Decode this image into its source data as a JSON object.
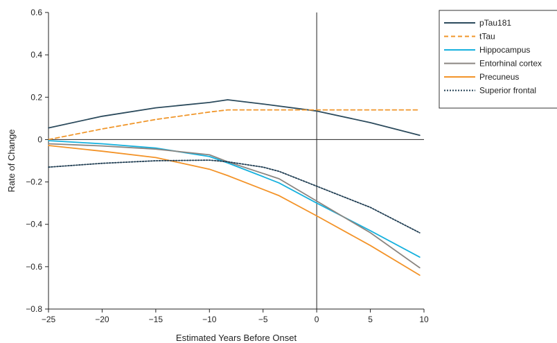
{
  "chart_data": {
    "type": "line",
    "title": "",
    "xlabel": "Estimated Years Before Onset",
    "ylabel": "Rate of Change",
    "xlim": [
      -25,
      10
    ],
    "ylim": [
      -0.8,
      0.6
    ],
    "x_ticks": [
      -25,
      -20,
      -15,
      -10,
      -5,
      0,
      5,
      10
    ],
    "y_ticks": [
      0.6,
      0.4,
      0.2,
      0,
      -0.2,
      -0.4,
      -0.6,
      -0.8
    ],
    "x_tick_labels": [
      "−25",
      "−20",
      "−15",
      "−10",
      "−5",
      "0",
      "5",
      "10"
    ],
    "y_tick_labels": [
      "0.6",
      "0.4",
      "0.2",
      "0",
      "−0.2",
      "−0.4",
      "−0.6",
      "−0.8"
    ],
    "reference_lines": [
      {
        "axis": "y",
        "value": 0
      },
      {
        "axis": "x",
        "value": 0
      }
    ],
    "grid": false,
    "legend_position": "top-right, outside plot",
    "series": [
      {
        "name": "pTau181",
        "color": "#2b4a5c",
        "style": "solid",
        "x": [
          -25,
          -20,
          -15,
          -10,
          -8.3,
          -5,
          0,
          5,
          9.6
        ],
        "y": [
          0.055,
          0.11,
          0.15,
          0.175,
          0.188,
          0.168,
          0.135,
          0.08,
          0.02
        ]
      },
      {
        "name": "tTau",
        "color": "#f0962a",
        "style": "dashed",
        "x": [
          -25,
          -20,
          -15,
          -10,
          -8.3,
          -5,
          0,
          5,
          9.6
        ],
        "y": [
          0.0,
          0.05,
          0.095,
          0.13,
          0.14,
          0.14,
          0.14,
          0.14,
          0.14
        ]
      },
      {
        "name": "Hippocampus",
        "color": "#16b1de",
        "style": "solid",
        "x": [
          -25,
          -20,
          -15,
          -10,
          -8.3,
          -5,
          -3.5,
          0,
          5,
          9.6
        ],
        "y": [
          -0.005,
          -0.02,
          -0.04,
          -0.08,
          -0.11,
          -0.175,
          -0.205,
          -0.3,
          -0.43,
          -0.555
        ]
      },
      {
        "name": "Entorhinal cortex",
        "color": "#8a8580",
        "style": "solid",
        "x": [
          -25,
          -20,
          -15,
          -10,
          -8.3,
          -5,
          -3.5,
          0,
          5,
          9.6
        ],
        "y": [
          -0.02,
          -0.03,
          -0.045,
          -0.072,
          -0.105,
          -0.16,
          -0.185,
          -0.29,
          -0.44,
          -0.605
        ]
      },
      {
        "name": "Precuneus",
        "color": "#f39328",
        "style": "solid",
        "x": [
          -25,
          -20,
          -15,
          -10,
          -8.3,
          -5,
          -3.5,
          0,
          5,
          9.6
        ],
        "y": [
          -0.028,
          -0.055,
          -0.085,
          -0.14,
          -0.17,
          -0.235,
          -0.265,
          -0.36,
          -0.5,
          -0.64
        ]
      },
      {
        "name": "Superior frontal",
        "color": "#1f3d52",
        "style": "dotted",
        "x": [
          -25,
          -20,
          -15,
          -10,
          -8.3,
          -5,
          -3.5,
          0,
          5,
          9.6
        ],
        "y": [
          -0.13,
          -0.112,
          -0.1,
          -0.097,
          -0.105,
          -0.13,
          -0.15,
          -0.22,
          -0.32,
          -0.44
        ]
      }
    ]
  }
}
